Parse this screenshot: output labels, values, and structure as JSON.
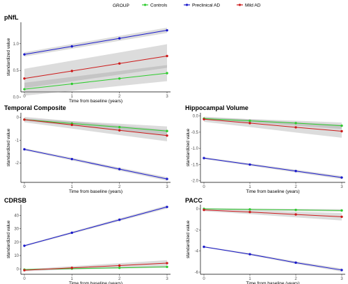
{
  "legend": {
    "title": "GROUP",
    "items": [
      {
        "label": "Controls",
        "color": "#2ecc2e"
      },
      {
        "label": "Preclinical AD",
        "color": "#1a1acc"
      },
      {
        "label": "Mild AD",
        "color": "#cc1a1a"
      }
    ],
    "placement": "top"
  },
  "chart_data": [
    {
      "type": "line",
      "title": "pNfL",
      "xlabel": "Time from baseline (years)",
      "ylabel": "standardized value",
      "x": [
        0,
        1,
        2,
        3
      ],
      "xlim": [
        0,
        3
      ],
      "ylim": [
        0.1,
        1.4
      ],
      "yticks": [
        0.0,
        0.5,
        1.0
      ],
      "ytick_labels": [
        "0.0",
        "0.5",
        "1.0"
      ],
      "series": [
        {
          "name": "Controls",
          "color": "#2ecc2e",
          "values": [
            0.15,
            0.25,
            0.35,
            0.45
          ],
          "ci": [
            0.12,
            0.15
          ]
        },
        {
          "name": "Preclinical AD",
          "color": "#1a1acc",
          "values": [
            0.8,
            0.95,
            1.1,
            1.25
          ],
          "ci": [
            0.04,
            0.05
          ]
        },
        {
          "name": "Mild AD",
          "color": "#cc1a1a",
          "values": [
            0.35,
            0.49,
            0.63,
            0.77
          ],
          "ci": [
            0.18,
            0.22
          ]
        }
      ]
    },
    {
      "type": "line",
      "title": "Temporal Composite",
      "xlabel": "Time from baseline (years)",
      "ylabel": "standardized value",
      "x": [
        0,
        1,
        2,
        3
      ],
      "xlim": [
        0,
        3
      ],
      "ylim": [
        -2.85,
        0.2
      ],
      "yticks": [
        0,
        -1,
        -2
      ],
      "ytick_labels": [
        "0",
        "-1",
        "-2"
      ],
      "series": [
        {
          "name": "Controls",
          "color": "#2ecc2e",
          "values": [
            -0.1,
            -0.27,
            -0.43,
            -0.6
          ],
          "ci": [
            0.05,
            0.2
          ]
        },
        {
          "name": "Preclinical AD",
          "color": "#1a1acc",
          "values": [
            -1.4,
            -1.83,
            -2.27,
            -2.7
          ],
          "ci": [
            0.05,
            0.08
          ]
        },
        {
          "name": "Mild AD",
          "color": "#cc1a1a",
          "values": [
            -0.1,
            -0.33,
            -0.57,
            -0.8
          ],
          "ci": [
            0.12,
            0.25
          ]
        }
      ]
    },
    {
      "type": "line",
      "title": "Hippocampal Volume",
      "xlabel": "Time from baseline (years)",
      "ylabel": "standardized value",
      "x": [
        0,
        1,
        2,
        3
      ],
      "xlim": [
        0,
        3
      ],
      "ylim": [
        -2.05,
        0.1
      ],
      "yticks": [
        0.0,
        -0.5,
        -1.0,
        -1.5,
        -2.0
      ],
      "ytick_labels": [
        "0.0",
        "-0.5",
        "-1.0",
        "-1.5",
        "-2.0"
      ],
      "series": [
        {
          "name": "Controls",
          "color": "#2ecc2e",
          "values": [
            -0.08,
            -0.15,
            -0.22,
            -0.3
          ],
          "ci": [
            0.03,
            0.1
          ]
        },
        {
          "name": "Preclinical AD",
          "color": "#1a1acc",
          "values": [
            -1.3,
            -1.5,
            -1.7,
            -1.9
          ],
          "ci": [
            0.03,
            0.05
          ]
        },
        {
          "name": "Mild AD",
          "color": "#cc1a1a",
          "values": [
            -0.1,
            -0.22,
            -0.35,
            -0.47
          ],
          "ci": [
            0.08,
            0.2
          ]
        }
      ]
    },
    {
      "type": "line",
      "title": "CDRSB",
      "xlabel": "Time from baseline (years)",
      "ylabel": "standardized value",
      "x": [
        0,
        1,
        2,
        3
      ],
      "xlim": [
        0,
        3
      ],
      "ylim": [
        -4,
        48
      ],
      "yticks": [
        0,
        10,
        20,
        30,
        40
      ],
      "ytick_labels": [
        "0",
        "10",
        "20",
        "30",
        "40"
      ],
      "series": [
        {
          "name": "Controls",
          "color": "#2ecc2e",
          "values": [
            -0.5,
            0.2,
            0.8,
            1.5
          ],
          "ci": [
            0.5,
            0.6
          ]
        },
        {
          "name": "Preclinical AD",
          "color": "#1a1acc",
          "values": [
            17.3,
            27,
            36.7,
            46.3
          ],
          "ci": [
            0.6,
            1.2
          ]
        },
        {
          "name": "Mild AD",
          "color": "#cc1a1a",
          "values": [
            -1,
            0.8,
            2.5,
            4.3
          ],
          "ci": [
            0.8,
            2.2
          ]
        }
      ]
    },
    {
      "type": "line",
      "title": "PACC",
      "xlabel": "Time from baseline (years)",
      "ylabel": "standardized value",
      "x": [
        0,
        1,
        2,
        3
      ],
      "xlim": [
        0,
        3
      ],
      "ylim": [
        -6.2,
        0.4
      ],
      "yticks": [
        0,
        -2,
        -4,
        -6
      ],
      "ytick_labels": [
        "0",
        "-2",
        "-4",
        "-6"
      ],
      "series": [
        {
          "name": "Controls",
          "color": "#2ecc2e",
          "values": [
            0,
            -0.05,
            -0.1,
            -0.15
          ],
          "ci": [
            0.06,
            0.12
          ]
        },
        {
          "name": "Preclinical AD",
          "color": "#1a1acc",
          "values": [
            -3.6,
            -4.3,
            -5.1,
            -5.8
          ],
          "ci": [
            0.06,
            0.15
          ]
        },
        {
          "name": "Mild AD",
          "color": "#cc1a1a",
          "values": [
            -0.1,
            -0.3,
            -0.53,
            -0.75
          ],
          "ci": [
            0.12,
            0.35
          ]
        }
      ]
    }
  ]
}
